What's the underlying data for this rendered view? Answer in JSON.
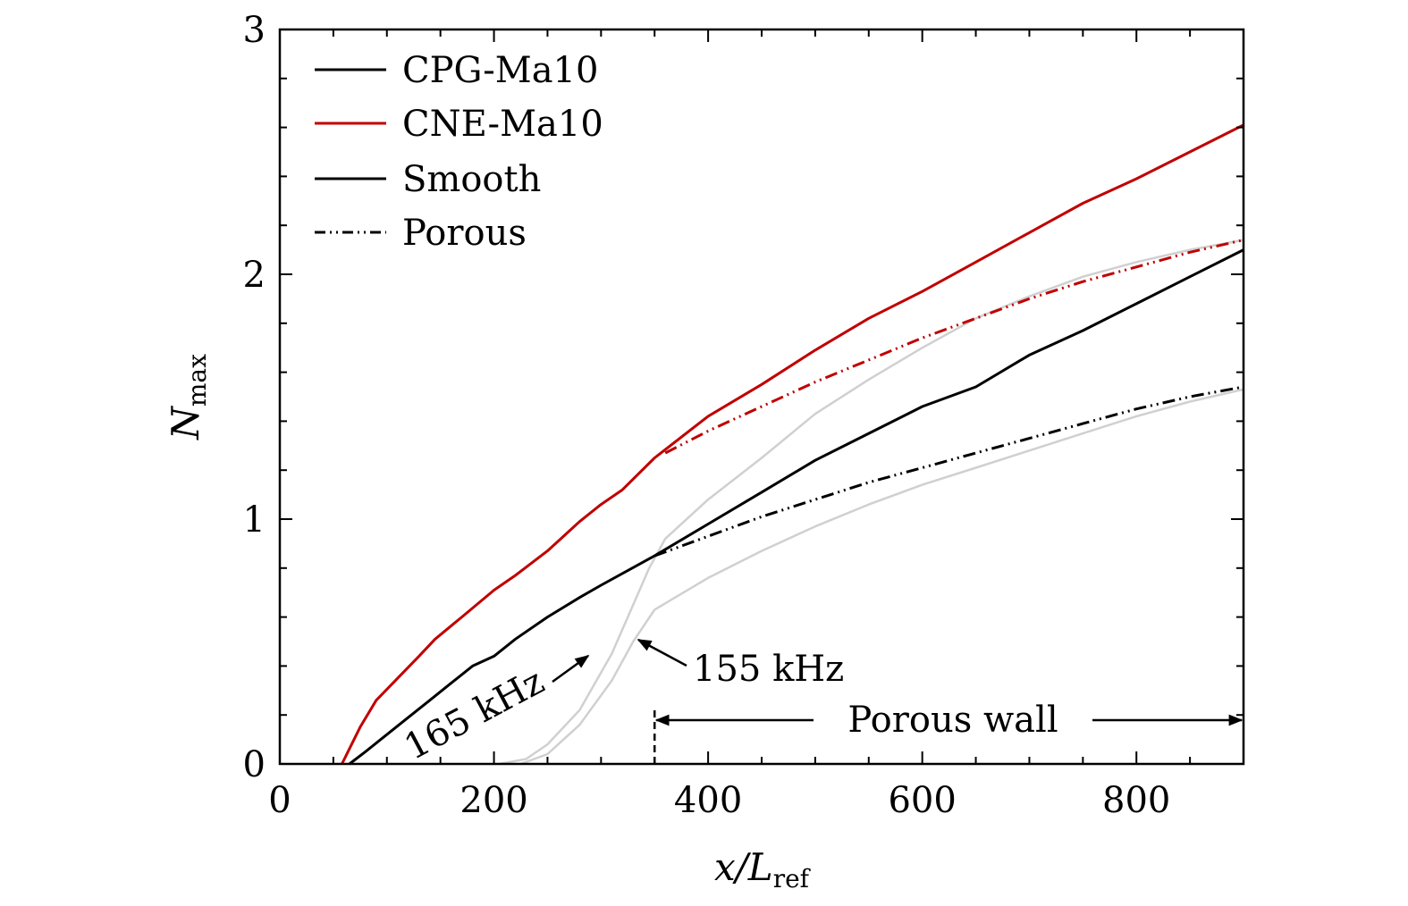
{
  "chart_data": {
    "type": "line",
    "xlabel": {
      "main": "x/L",
      "sub": "ref"
    },
    "ylabel": {
      "main": "N",
      "sub": "max"
    },
    "xlim": [
      0,
      900
    ],
    "ylim": [
      0,
      3
    ],
    "grid": false,
    "legend_position": "top-left",
    "x_ticks": [
      0,
      200,
      400,
      600,
      800
    ],
    "y_ticks": [
      0,
      1,
      2,
      3
    ],
    "colors": {
      "black": "#000000",
      "red": "#c00000",
      "gray": "#d0d0d0"
    },
    "legend": [
      {
        "label": "CPG-Ma10",
        "color": "#000000",
        "style": "solid"
      },
      {
        "label": "CNE-Ma10",
        "color": "#c00000",
        "style": "solid"
      },
      {
        "label": "Smooth",
        "color": "#000000",
        "style": "solid"
      },
      {
        "label": "Porous",
        "color": "#000000",
        "style": "dash-dot-dot"
      }
    ],
    "series": [
      {
        "key": "cpg-smooth",
        "color": "#000000",
        "style": "solid",
        "points": [
          [
            65,
            0
          ],
          [
            80,
            0.05
          ],
          [
            100,
            0.12
          ],
          [
            120,
            0.19
          ],
          [
            140,
            0.26
          ],
          [
            160,
            0.33
          ],
          [
            180,
            0.4
          ],
          [
            200,
            0.44
          ],
          [
            220,
            0.51
          ],
          [
            250,
            0.6
          ],
          [
            280,
            0.68
          ],
          [
            300,
            0.73
          ],
          [
            350,
            0.85
          ],
          [
            400,
            0.98
          ],
          [
            450,
            1.11
          ],
          [
            500,
            1.24
          ],
          [
            550,
            1.35
          ],
          [
            600,
            1.46
          ],
          [
            650,
            1.54
          ],
          [
            700,
            1.67
          ],
          [
            750,
            1.77
          ],
          [
            800,
            1.88
          ],
          [
            850,
            1.99
          ],
          [
            900,
            2.1
          ]
        ]
      },
      {
        "key": "cne-smooth",
        "color": "#c00000",
        "style": "solid",
        "points": [
          [
            58,
            0
          ],
          [
            75,
            0.15
          ],
          [
            90,
            0.26
          ],
          [
            110,
            0.35
          ],
          [
            130,
            0.44
          ],
          [
            145,
            0.51
          ],
          [
            170,
            0.6
          ],
          [
            200,
            0.71
          ],
          [
            220,
            0.77
          ],
          [
            250,
            0.87
          ],
          [
            280,
            0.99
          ],
          [
            300,
            1.06
          ],
          [
            320,
            1.12
          ],
          [
            350,
            1.25
          ],
          [
            400,
            1.42
          ],
          [
            450,
            1.55
          ],
          [
            500,
            1.69
          ],
          [
            550,
            1.82
          ],
          [
            600,
            1.93
          ],
          [
            650,
            2.05
          ],
          [
            700,
            2.17
          ],
          [
            750,
            2.29
          ],
          [
            800,
            2.39
          ],
          [
            850,
            2.5
          ],
          [
            900,
            2.61
          ]
        ]
      },
      {
        "key": "cpg-porous",
        "color": "#000000",
        "style": "dash-dot-dot",
        "points": [
          [
            350,
            0.85
          ],
          [
            400,
            0.93
          ],
          [
            450,
            1.01
          ],
          [
            500,
            1.08
          ],
          [
            550,
            1.15
          ],
          [
            600,
            1.21
          ],
          [
            650,
            1.27
          ],
          [
            700,
            1.33
          ],
          [
            750,
            1.39
          ],
          [
            800,
            1.45
          ],
          [
            850,
            1.5
          ],
          [
            900,
            1.54
          ]
        ]
      },
      {
        "key": "cne-porous",
        "color": "#c00000",
        "style": "dash-dot-dot",
        "points": [
          [
            360,
            1.27
          ],
          [
            400,
            1.36
          ],
          [
            450,
            1.46
          ],
          [
            500,
            1.56
          ],
          [
            550,
            1.65
          ],
          [
            600,
            1.74
          ],
          [
            650,
            1.82
          ],
          [
            700,
            1.9
          ],
          [
            750,
            1.97
          ],
          [
            800,
            2.03
          ],
          [
            850,
            2.09
          ],
          [
            900,
            2.14
          ]
        ]
      },
      {
        "key": "gray-165khz",
        "color": "#d0d0d0",
        "style": "solid",
        "points": [
          [
            205,
            0
          ],
          [
            230,
            0.02
          ],
          [
            250,
            0.08
          ],
          [
            280,
            0.22
          ],
          [
            310,
            0.45
          ],
          [
            330,
            0.65
          ],
          [
            345,
            0.8
          ],
          [
            360,
            0.92
          ],
          [
            400,
            1.08
          ],
          [
            450,
            1.25
          ],
          [
            500,
            1.43
          ],
          [
            550,
            1.57
          ],
          [
            600,
            1.7
          ],
          [
            650,
            1.82
          ],
          [
            700,
            1.91
          ],
          [
            750,
            1.99
          ],
          [
            800,
            2.05
          ],
          [
            850,
            2.1
          ],
          [
            900,
            2.14
          ]
        ]
      },
      {
        "key": "gray-155khz",
        "color": "#d0d0d0",
        "style": "solid",
        "points": [
          [
            225,
            0
          ],
          [
            250,
            0.04
          ],
          [
            280,
            0.16
          ],
          [
            310,
            0.34
          ],
          [
            330,
            0.5
          ],
          [
            350,
            0.63
          ],
          [
            400,
            0.76
          ],
          [
            450,
            0.87
          ],
          [
            500,
            0.97
          ],
          [
            550,
            1.06
          ],
          [
            600,
            1.14
          ],
          [
            650,
            1.21
          ],
          [
            700,
            1.28
          ],
          [
            750,
            1.35
          ],
          [
            800,
            1.42
          ],
          [
            850,
            1.48
          ],
          [
            900,
            1.53
          ]
        ]
      }
    ],
    "annotations": {
      "label_165": "165 kHz",
      "label_155": "155 kHz",
      "porous_wall": "Porous wall",
      "porous_wall_start_x": 350
    }
  }
}
